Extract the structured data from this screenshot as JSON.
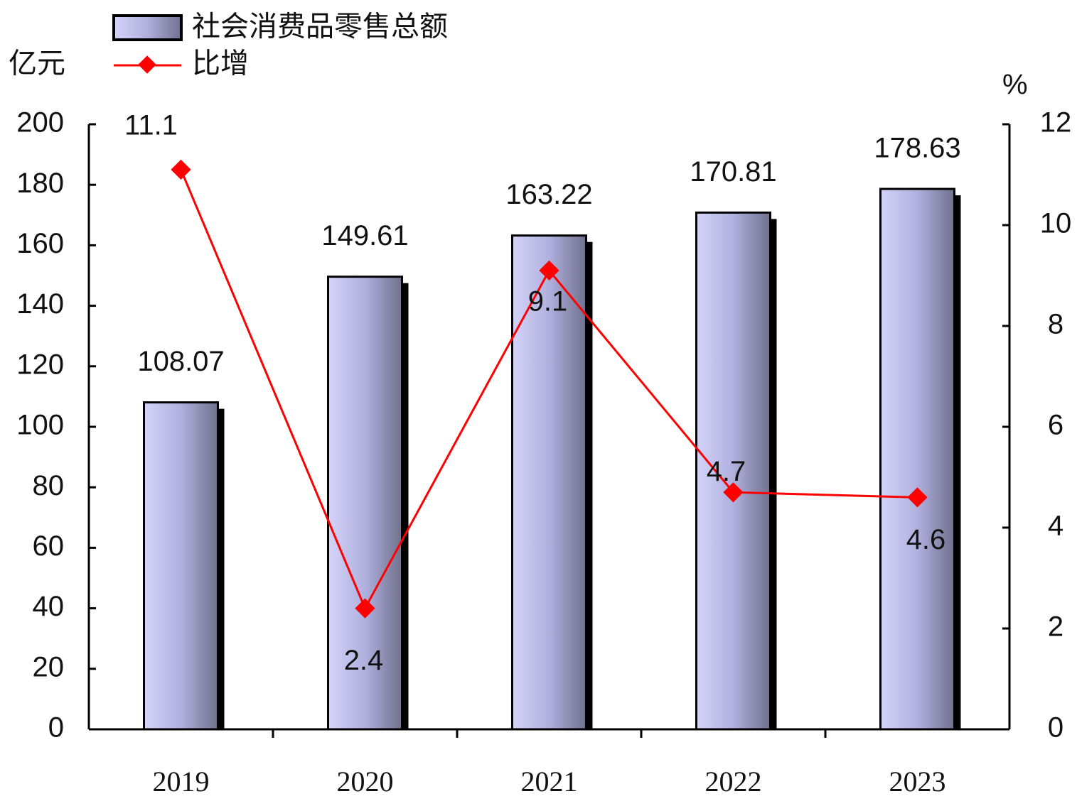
{
  "chart_data": {
    "type": "bar",
    "y_label": "亿元",
    "y2_label": "%",
    "categories": [
      "2019",
      "2020",
      "2021",
      "2022",
      "2023"
    ],
    "series": [
      {
        "name": "社会消费品零售总额",
        "type": "bar",
        "color": "#b4b4e6",
        "values": [
          108.07,
          149.61,
          163.22,
          170.81,
          178.63
        ]
      },
      {
        "name": "比增",
        "type": "line",
        "axis": "y2",
        "color": "#ff0000",
        "values": [
          11.1,
          2.4,
          9.1,
          4.7,
          4.6
        ]
      }
    ],
    "ylim": [
      0,
      200
    ],
    "yticks": [
      0,
      20,
      40,
      60,
      80,
      100,
      120,
      140,
      160,
      180,
      200
    ],
    "y2lim": [
      0,
      12
    ],
    "y2ticks": [
      0,
      2,
      4,
      6,
      8,
      10,
      12
    ]
  }
}
